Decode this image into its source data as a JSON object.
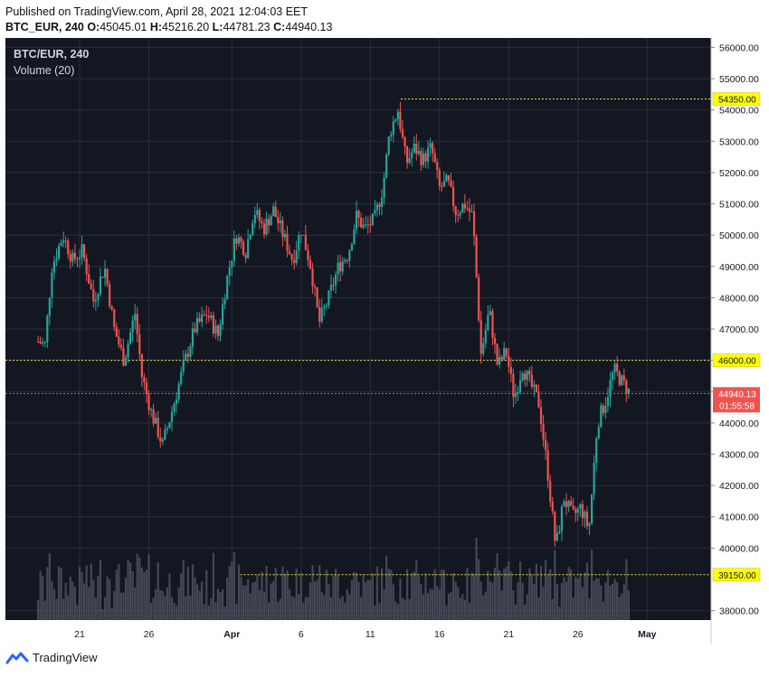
{
  "header": {
    "published": "Published on TradingView.com, April 28, 2021 12:04:03 EET",
    "symbol_line": "BTC_EUR, 240",
    "o_label": "O:",
    "o_value": "45045.01",
    "h_label": "H:",
    "h_value": "45216.20",
    "l_label": "L:",
    "l_value": "44781.23",
    "c_label": "C:",
    "c_value": "44940.13"
  },
  "legend": {
    "title": "BTC/EUR, 240",
    "volume": "Volume (20)"
  },
  "brand": {
    "name": "TradingView"
  },
  "colors": {
    "up": "#26a69a",
    "down": "#ef5350",
    "background": "#131722",
    "level": "#f0e442",
    "last": "#ef5350",
    "volume": "#555a66"
  },
  "chart_data": {
    "type": "candlestick",
    "timeframe": "240",
    "symbol": "BTC/EUR",
    "x_ticks": [
      "21",
      "26",
      "Apr",
      "6",
      "11",
      "16",
      "21",
      "26",
      "May"
    ],
    "x_tick_days": [
      3,
      8,
      14,
      19,
      24,
      29,
      34,
      39,
      44
    ],
    "ylim": [
      37700,
      56300
    ],
    "y_ticks": [
      "56000.00",
      "55000.00",
      "54000.00",
      "53000.00",
      "52000.00",
      "51000.00",
      "50000.00",
      "49000.00",
      "48000.00",
      "47000.00",
      "46000.00",
      "45000.00",
      "44000.00",
      "43000.00",
      "42000.00",
      "41000.00",
      "40000.00",
      "38000.00"
    ],
    "y_tick_values": [
      56000,
      55000,
      54000,
      53000,
      52000,
      51000,
      50000,
      49000,
      48000,
      47000,
      46000,
      45000,
      44000,
      43000,
      42000,
      41000,
      40000,
      38000
    ],
    "levels": [
      {
        "label": "54350.00",
        "value": 54350
      },
      {
        "label": "46000.00",
        "value": 46000
      },
      {
        "label": "39150.00",
        "value": 39150
      }
    ],
    "last_price": {
      "label": "44940.13",
      "value": 44940.13,
      "countdown": "01:55:58"
    },
    "price_path": [
      {
        "day": -1.0,
        "price": 46800
      },
      {
        "day": 0.5,
        "price": 46500
      },
      {
        "day": 1.0,
        "price": 49000
      },
      {
        "day": 1.8,
        "price": 50000
      },
      {
        "day": 2.5,
        "price": 49200
      },
      {
        "day": 3.2,
        "price": 49500
      },
      {
        "day": 4.0,
        "price": 47900
      },
      {
        "day": 4.8,
        "price": 49000
      },
      {
        "day": 5.5,
        "price": 47000
      },
      {
        "day": 6.2,
        "price": 46000
      },
      {
        "day": 7.0,
        "price": 47500
      },
      {
        "day": 7.5,
        "price": 45500
      },
      {
        "day": 8.2,
        "price": 44300
      },
      {
        "day": 9.0,
        "price": 43300
      },
      {
        "day": 9.8,
        "price": 44600
      },
      {
        "day": 10.5,
        "price": 45800
      },
      {
        "day": 11.3,
        "price": 47000
      },
      {
        "day": 12.2,
        "price": 47500
      },
      {
        "day": 13.0,
        "price": 46800
      },
      {
        "day": 13.6,
        "price": 48500
      },
      {
        "day": 14.3,
        "price": 50000
      },
      {
        "day": 15.0,
        "price": 49500
      },
      {
        "day": 15.6,
        "price": 50800
      },
      {
        "day": 16.3,
        "price": 50200
      },
      {
        "day": 17.0,
        "price": 50800
      },
      {
        "day": 17.7,
        "price": 50000
      },
      {
        "day": 18.4,
        "price": 49200
      },
      {
        "day": 19.0,
        "price": 50200
      },
      {
        "day": 19.7,
        "price": 49000
      },
      {
        "day": 20.3,
        "price": 47200
      },
      {
        "day": 21.0,
        "price": 48000
      },
      {
        "day": 21.7,
        "price": 49000
      },
      {
        "day": 22.4,
        "price": 49400
      },
      {
        "day": 23.0,
        "price": 50600
      },
      {
        "day": 23.6,
        "price": 50200
      },
      {
        "day": 24.3,
        "price": 50500
      },
      {
        "day": 24.9,
        "price": 51500
      },
      {
        "day": 25.4,
        "price": 53300
      },
      {
        "day": 26.0,
        "price": 54000
      },
      {
        "day": 26.6,
        "price": 52300
      },
      {
        "day": 27.2,
        "price": 52800
      },
      {
        "day": 27.8,
        "price": 52400
      },
      {
        "day": 28.4,
        "price": 52800
      },
      {
        "day": 29.0,
        "price": 51500
      },
      {
        "day": 29.6,
        "price": 51700
      },
      {
        "day": 30.2,
        "price": 50700
      },
      {
        "day": 30.8,
        "price": 51000
      },
      {
        "day": 31.4,
        "price": 50600
      },
      {
        "day": 32.0,
        "price": 46200
      },
      {
        "day": 32.6,
        "price": 47600
      },
      {
        "day": 33.2,
        "price": 45800
      },
      {
        "day": 33.8,
        "price": 46300
      },
      {
        "day": 34.4,
        "price": 44800
      },
      {
        "day": 35.0,
        "price": 45800
      },
      {
        "day": 35.6,
        "price": 45200
      },
      {
        "day": 36.2,
        "price": 44600
      },
      {
        "day": 36.8,
        "price": 42500
      },
      {
        "day": 37.4,
        "price": 40000
      },
      {
        "day": 38.0,
        "price": 41600
      },
      {
        "day": 38.6,
        "price": 41000
      },
      {
        "day": 39.2,
        "price": 41300
      },
      {
        "day": 39.8,
        "price": 40600
      },
      {
        "day": 40.4,
        "price": 44000
      },
      {
        "day": 41.0,
        "price": 44700
      },
      {
        "day": 41.6,
        "price": 45700
      },
      {
        "day": 42.2,
        "price": 45300
      },
      {
        "day": 42.8,
        "price": 44940
      }
    ]
  }
}
